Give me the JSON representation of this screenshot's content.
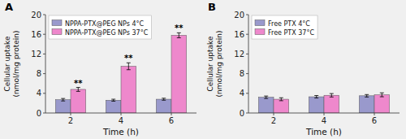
{
  "chart_data": [
    {
      "type": "bar",
      "title": "A",
      "categories": [
        "2",
        "4",
        "6"
      ],
      "series": [
        {
          "name": "NPPA-PTX@PEG NPs 4°C",
          "color": "#9999cc",
          "values": [
            2.7,
            2.6,
            2.8
          ],
          "errors": [
            0.25,
            0.2,
            0.2
          ]
        },
        {
          "name": "NPPA-PTX@PEG NPs 37°C",
          "color": "#ee88cc",
          "values": [
            4.8,
            9.5,
            15.8
          ],
          "errors": [
            0.4,
            0.7,
            0.5
          ],
          "annotations": [
            "**",
            "**",
            "**"
          ]
        }
      ],
      "x_label": "Time (h)",
      "y_label": "Cellular uptake\n(nmol/mg protein)",
      "ylim": [
        0,
        20
      ],
      "yticks": [
        0,
        4,
        8,
        12,
        16,
        20
      ],
      "grid": false,
      "legend": "upper left"
    },
    {
      "type": "bar",
      "title": "B",
      "categories": [
        "2",
        "4",
        "6"
      ],
      "series": [
        {
          "name": "Free PTX 4°C",
          "color": "#9999cc",
          "values": [
            3.2,
            3.3,
            3.5
          ],
          "errors": [
            0.25,
            0.25,
            0.25
          ]
        },
        {
          "name": "Free PTX 37°C",
          "color": "#ee88cc",
          "values": [
            2.8,
            3.6,
            3.7
          ],
          "errors": [
            0.3,
            0.35,
            0.4
          ]
        }
      ],
      "x_label": "Time (h)",
      "y_label": "Cellular uptake\n(nmol/mg protein)",
      "ylim": [
        0,
        20
      ],
      "yticks": [
        0,
        4,
        8,
        12,
        16,
        20
      ],
      "grid": false,
      "legend": "upper left"
    }
  ]
}
